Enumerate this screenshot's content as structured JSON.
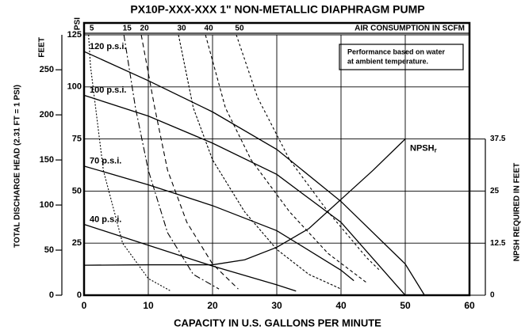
{
  "chart_data": {
    "type": "line",
    "title": "PX10P-XXX-XXX 1\" NON-METALLIC DIAPHRAGM PUMP",
    "x_label": "CAPACITY IN U.S. GALLONS PER MINUTE",
    "y_label": "TOTAL DISCHARGE HEAD (2.31 FT = 1 PSI)",
    "y2_label": "NPSH REQUIRED IN FEET",
    "top_label": "AIR CONSUMPTION IN SCFM",
    "feet_label": "FEET",
    "psi_label": "PSI",
    "note": [
      "Performance based on water",
      "at ambient temperature."
    ],
    "xlim": [
      0,
      60
    ],
    "xticks": [
      0,
      10,
      20,
      30,
      40,
      50,
      60
    ],
    "ylim": [
      0,
      125
    ],
    "yticks": [
      0,
      25,
      50,
      75,
      100,
      125
    ],
    "feet_lim": [
      0,
      288.75
    ],
    "feet_ticks": [
      0,
      50,
      100,
      150,
      200,
      250
    ],
    "y2lim": [
      0,
      62.5
    ],
    "y2ticks": [
      0,
      12.5,
      25,
      37.5
    ],
    "grid": true,
    "series": [
      {
        "name": "120 p.s.i.",
        "color": "#000000",
        "x": [
          0,
          10,
          20,
          30,
          40,
          50,
          53
        ],
        "values": [
          117,
          103,
          88,
          70,
          45,
          15,
          0
        ]
      },
      {
        "name": "100 p.s.i.",
        "color": "#000000",
        "x": [
          0,
          10,
          20,
          30,
          40,
          50
        ],
        "values": [
          96,
          86,
          73,
          58,
          35,
          0
        ]
      },
      {
        "name": "70 p.s.i.",
        "color": "#000000",
        "x": [
          0,
          10,
          20,
          30,
          40,
          42
        ],
        "values": [
          62,
          53,
          43,
          31,
          12,
          7
        ]
      },
      {
        "name": "40 p.s.i.",
        "color": "#000000",
        "x": [
          0,
          10,
          20,
          30,
          33
        ],
        "values": [
          34,
          24,
          14,
          5,
          2
        ]
      },
      {
        "name": "NPSH",
        "subscript": "r",
        "color": "#000000",
        "axis": "y2",
        "x": [
          0,
          10,
          20,
          25,
          30,
          35,
          40,
          45,
          50
        ],
        "values": [
          7.2,
          7.3,
          7.3,
          8.5,
          11.5,
          16,
          23,
          30,
          37.5
        ]
      },
      {
        "name": "5",
        "color": "#000000",
        "axis": "air",
        "x": [
          0.7,
          1,
          3,
          6,
          10,
          13.5
        ],
        "values": [
          125,
          110,
          60,
          25,
          8,
          2
        ]
      },
      {
        "name": "15",
        "color": "#000000",
        "axis": "air",
        "x": [
          6.2,
          8,
          10,
          13,
          17,
          21
        ],
        "values": [
          125,
          90,
          60,
          30,
          10,
          3
        ]
      },
      {
        "name": "20",
        "color": "#000000",
        "axis": "air",
        "x": [
          8.9,
          11,
          13,
          16,
          20,
          24
        ],
        "values": [
          125,
          90,
          60,
          35,
          15,
          3
        ]
      },
      {
        "name": "30",
        "color": "#000000",
        "axis": "air",
        "x": [
          14.7,
          17,
          20,
          25,
          30,
          35,
          40
        ],
        "values": [
          125,
          90,
          65,
          40,
          22,
          10,
          3
        ]
      },
      {
        "name": "40",
        "color": "#000000",
        "axis": "air",
        "x": [
          18.9,
          22,
          26,
          32,
          38,
          44
        ],
        "values": [
          125,
          90,
          65,
          40,
          20,
          6
        ]
      },
      {
        "name": "50",
        "color": "#000000",
        "axis": "air",
        "x": [
          23.7,
          27,
          32,
          38,
          44,
          46
        ],
        "values": [
          125,
          95,
          65,
          40,
          18,
          12
        ]
      }
    ]
  }
}
